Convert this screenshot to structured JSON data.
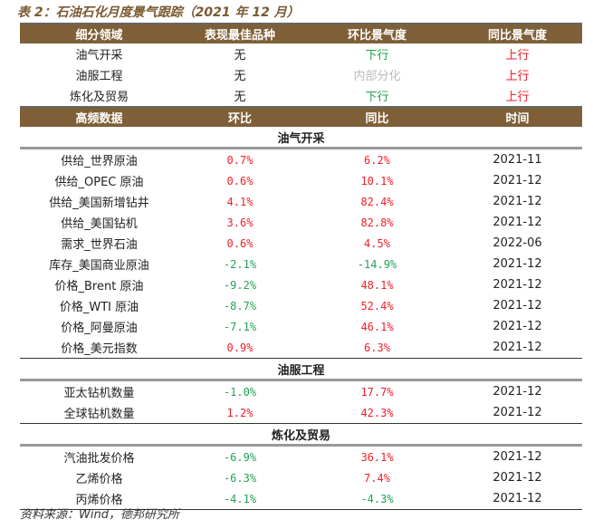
{
  "title": "表 2：石油石化月度景气跟踪（2021 年 12 月）",
  "summary": {
    "headers": [
      "细分领域",
      "表现最佳品种",
      "环比景气度",
      "同比景气度"
    ],
    "rows": [
      [
        "油气开采",
        "无",
        "下行",
        "上行"
      ],
      [
        "油服工程",
        "无",
        "内部分化",
        "上行"
      ],
      [
        "炼化及贸易",
        "无",
        "下行",
        "上行"
      ]
    ]
  },
  "detail": {
    "headers": [
      "高频数据",
      "环比",
      "同比",
      "时间"
    ],
    "sections": [
      {
        "name": "油气开采",
        "rows": [
          [
            "供给_世界原油",
            "0.7%",
            "6.2%",
            "2021-11"
          ],
          [
            "供给_OPEC 原油",
            "0.6%",
            "10.1%",
            "2021-12"
          ],
          [
            "供给_美国新增钻井",
            "4.1%",
            "82.4%",
            "2021-12"
          ],
          [
            "供给_美国钻机",
            "3.6%",
            "82.8%",
            "2021-12"
          ],
          [
            "需求_世界石油",
            "0.6%",
            "4.5%",
            "2022-06"
          ],
          [
            "库存_美国商业原油",
            "-2.1%",
            "-14.9%",
            "2021-12"
          ],
          [
            "价格_Brent 原油",
            "-9.2%",
            "48.1%",
            "2021-12"
          ],
          [
            "价格_WTI 原油",
            "-8.7%",
            "52.4%",
            "2021-12"
          ],
          [
            "价格_阿曼原油",
            "-7.1%",
            "46.1%",
            "2021-12"
          ],
          [
            "价格_美元指数",
            "0.9%",
            "6.3%",
            "2021-12"
          ]
        ]
      },
      {
        "name": "油服工程",
        "rows": [
          [
            "亚太钻机数量",
            "-1.0%",
            "17.7%",
            "2021-12"
          ],
          [
            "全球钻机数量",
            "1.2%",
            "42.3%",
            "2021-12"
          ]
        ]
      },
      {
        "name": "炼化及贸易",
        "rows": [
          [
            "汽油批发价格",
            "-6.9%",
            "36.1%",
            "2021-12"
          ],
          [
            "乙烯价格",
            "-6.3%",
            "7.4%",
            "2021-12"
          ],
          [
            "丙烯价格",
            "-4.1%",
            "-4.3%",
            "2021-12"
          ]
        ]
      }
    ]
  },
  "source": "资料来源：Wind，德邦研究所",
  "colors": {
    "header": "#7e5f37",
    "up": "#f01e28",
    "down": "#22a352",
    "mixed": "#bbbbbb"
  }
}
